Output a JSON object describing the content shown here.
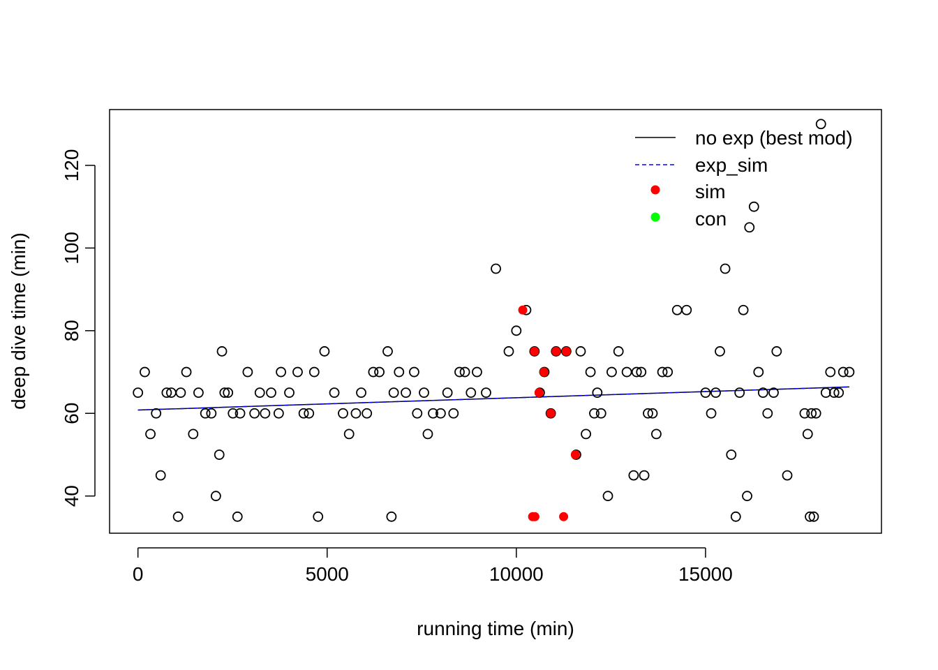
{
  "chart_data": {
    "type": "scatter",
    "title": "",
    "xlabel": "running time (min)",
    "ylabel": "deep dive time (min)",
    "xlim": [
      -750,
      19650
    ],
    "ylim": [
      31,
      133.5
    ],
    "xticks": [
      0,
      5000,
      10000,
      15000
    ],
    "yticks": [
      40,
      60,
      80,
      100,
      120
    ],
    "grid": false,
    "legend_position": "top-right",
    "colors": {
      "open_points": "#000000",
      "sim": "#ff0000",
      "con": "#00ff00",
      "best_mod_line": "#000000",
      "exp_sim_line": "#0000ff"
    },
    "legend": [
      {
        "label": "no exp (best mod)",
        "kind": "line",
        "color": "#000000",
        "dash": "solid"
      },
      {
        "label": "exp_sim",
        "kind": "line",
        "color": "#0000ff",
        "dash": "dashed"
      },
      {
        "label": "sim",
        "kind": "point",
        "color": "#ff0000"
      },
      {
        "label": "con",
        "kind": "point",
        "color": "#00ff00"
      }
    ],
    "lines": [
      {
        "name": "no exp (best mod)",
        "color": "#000000",
        "dash": "solid",
        "x": [
          0,
          18800
        ],
        "y": [
          60.8,
          66.4
        ]
      },
      {
        "name": "exp_sim",
        "color": "#0000ff",
        "dash": "dashed",
        "x": [
          0,
          18800
        ],
        "y": [
          60.8,
          66.4
        ]
      }
    ],
    "series": [
      {
        "name": "all",
        "marker": "open-circle",
        "color": "#000000",
        "points": [
          [
            0,
            65
          ],
          [
            180,
            70
          ],
          [
            330,
            55
          ],
          [
            480,
            60
          ],
          [
            600,
            45
          ],
          [
            760,
            65
          ],
          [
            880,
            65
          ],
          [
            1060,
            35
          ],
          [
            1130,
            65
          ],
          [
            1280,
            70
          ],
          [
            1460,
            55
          ],
          [
            1600,
            65
          ],
          [
            1780,
            60
          ],
          [
            1940,
            60
          ],
          [
            2060,
            40
          ],
          [
            2150,
            50
          ],
          [
            2220,
            75
          ],
          [
            2290,
            65
          ],
          [
            2380,
            65
          ],
          [
            2510,
            60
          ],
          [
            2630,
            35
          ],
          [
            2700,
            60
          ],
          [
            2900,
            70
          ],
          [
            3080,
            60
          ],
          [
            3220,
            65
          ],
          [
            3360,
            60
          ],
          [
            3520,
            65
          ],
          [
            3720,
            60
          ],
          [
            3780,
            70
          ],
          [
            4000,
            65
          ],
          [
            4220,
            70
          ],
          [
            4380,
            60
          ],
          [
            4520,
            60
          ],
          [
            4660,
            70
          ],
          [
            4760,
            35
          ],
          [
            4930,
            75
          ],
          [
            5190,
            65
          ],
          [
            5420,
            60
          ],
          [
            5580,
            55
          ],
          [
            5760,
            60
          ],
          [
            5900,
            65
          ],
          [
            6050,
            60
          ],
          [
            6220,
            70
          ],
          [
            6380,
            70
          ],
          [
            6600,
            75
          ],
          [
            6700,
            35
          ],
          [
            6760,
            65
          ],
          [
            6900,
            70
          ],
          [
            7080,
            65
          ],
          [
            7300,
            70
          ],
          [
            7380,
            60
          ],
          [
            7560,
            65
          ],
          [
            7660,
            55
          ],
          [
            7800,
            60
          ],
          [
            8000,
            60
          ],
          [
            8180,
            65
          ],
          [
            8340,
            60
          ],
          [
            8500,
            70
          ],
          [
            8640,
            70
          ],
          [
            8800,
            65
          ],
          [
            8960,
            70
          ],
          [
            9200,
            65
          ],
          [
            9460,
            95
          ],
          [
            9800,
            75
          ],
          [
            10000,
            80
          ],
          [
            10260,
            85
          ],
          [
            10480,
            75
          ],
          [
            10620,
            65
          ],
          [
            10740,
            70
          ],
          [
            10910,
            60
          ],
          [
            11050,
            75
          ],
          [
            11320,
            75
          ],
          [
            11580,
            50
          ],
          [
            11700,
            75
          ],
          [
            11840,
            55
          ],
          [
            11960,
            70
          ],
          [
            12060,
            60
          ],
          [
            12140,
            65
          ],
          [
            12240,
            60
          ],
          [
            12420,
            40
          ],
          [
            12520,
            70
          ],
          [
            12700,
            75
          ],
          [
            12920,
            70
          ],
          [
            13100,
            45
          ],
          [
            13180,
            70
          ],
          [
            13300,
            70
          ],
          [
            13380,
            45
          ],
          [
            13480,
            60
          ],
          [
            13600,
            60
          ],
          [
            13700,
            55
          ],
          [
            13860,
            70
          ],
          [
            14000,
            70
          ],
          [
            14250,
            85
          ],
          [
            14500,
            85
          ],
          [
            15000,
            65
          ],
          [
            15150,
            60
          ],
          [
            15270,
            65
          ],
          [
            15380,
            75
          ],
          [
            15520,
            95
          ],
          [
            15680,
            50
          ],
          [
            15800,
            35
          ],
          [
            15900,
            65
          ],
          [
            16000,
            85
          ],
          [
            16100,
            40
          ],
          [
            16160,
            105
          ],
          [
            16280,
            110
          ],
          [
            16400,
            70
          ],
          [
            16520,
            65
          ],
          [
            16640,
            60
          ],
          [
            16800,
            65
          ],
          [
            16880,
            75
          ],
          [
            17160,
            45
          ],
          [
            17620,
            60
          ],
          [
            17700,
            55
          ],
          [
            17760,
            35
          ],
          [
            17800,
            60
          ],
          [
            17860,
            35
          ],
          [
            17920,
            60
          ],
          [
            18050,
            130
          ],
          [
            18180,
            65
          ],
          [
            18300,
            70
          ],
          [
            18400,
            65
          ],
          [
            18520,
            65
          ],
          [
            18640,
            70
          ],
          [
            18800,
            70
          ]
        ]
      },
      {
        "name": "sim",
        "marker": "filled-circle",
        "color": "#ff0000",
        "points": [
          [
            10170,
            85
          ],
          [
            10430,
            35
          ],
          [
            10490,
            35
          ],
          [
            10480,
            75
          ],
          [
            10600,
            65
          ],
          [
            10730,
            70
          ],
          [
            10910,
            60
          ],
          [
            11050,
            75
          ],
          [
            11250,
            35
          ],
          [
            11320,
            75
          ],
          [
            11560,
            50
          ]
        ]
      }
    ]
  }
}
